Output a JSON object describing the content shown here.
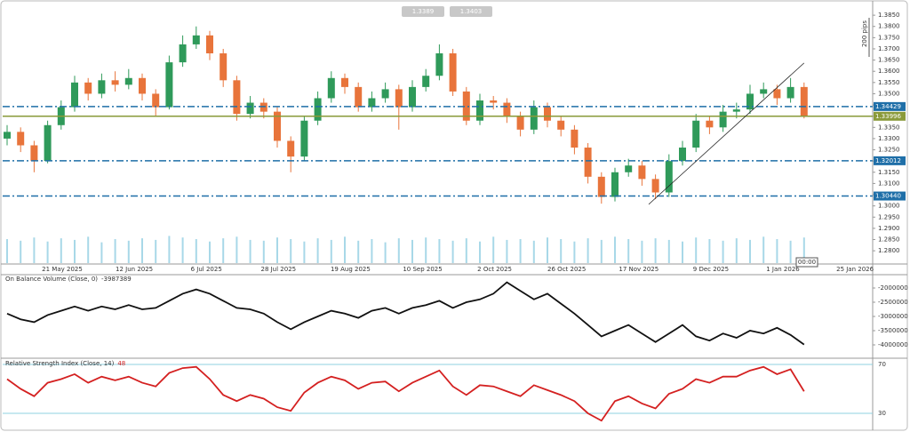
{
  "chart_data": [
    {
      "type": "candlestick",
      "toolbar": [
        "1.3389",
        "1.3403"
      ],
      "scale_label": "200 pips",
      "time_label": "00:00",
      "x_labels": [
        "21 May 2025",
        "12 Jun 2025",
        "6 Jul 2025",
        "28 Jul 2025",
        "19 Aug 2025",
        "10 Sep 2025",
        "2 Oct 2025",
        "26 Oct 2025",
        "17 Nov 2025",
        "9 Dec 2025",
        "1 Jan 2026",
        "25 Jan 2026"
      ],
      "open": [
        1.33,
        1.333,
        1.327,
        1.32,
        1.336,
        1.344,
        1.355,
        1.35,
        1.356,
        1.354,
        1.357,
        1.35,
        1.344,
        1.364,
        1.372,
        1.376,
        1.368,
        1.356,
        1.341,
        1.346,
        1.342,
        1.329,
        1.322,
        1.338,
        1.348,
        1.357,
        1.353,
        1.344,
        1.348,
        1.352,
        1.344,
        1.353,
        1.358,
        1.368,
        1.351,
        1.338,
        1.347,
        1.346,
        1.34,
        1.334,
        1.344,
        1.338,
        1.334,
        1.326,
        1.313,
        1.304,
        1.315,
        1.318,
        1.312,
        1.306,
        1.32,
        1.326,
        1.338,
        1.335,
        1.342,
        1.343,
        1.35,
        1.352,
        1.348,
        1.353
      ],
      "high": [
        1.336,
        1.335,
        1.329,
        1.338,
        1.347,
        1.358,
        1.357,
        1.359,
        1.36,
        1.361,
        1.359,
        1.352,
        1.367,
        1.376,
        1.38,
        1.378,
        1.37,
        1.358,
        1.349,
        1.348,
        1.344,
        1.331,
        1.34,
        1.351,
        1.36,
        1.359,
        1.355,
        1.351,
        1.355,
        1.354,
        1.356,
        1.361,
        1.372,
        1.37,
        1.353,
        1.35,
        1.349,
        1.348,
        1.342,
        1.347,
        1.346,
        1.34,
        1.336,
        1.328,
        1.315,
        1.317,
        1.321,
        1.32,
        1.314,
        1.323,
        1.329,
        1.341,
        1.34,
        1.345,
        1.346,
        1.354,
        1.355,
        1.354,
        1.357,
        1.355
      ],
      "low": [
        1.327,
        1.324,
        1.315,
        1.319,
        1.334,
        1.342,
        1.347,
        1.348,
        1.351,
        1.352,
        1.347,
        1.34,
        1.343,
        1.362,
        1.37,
        1.365,
        1.353,
        1.338,
        1.339,
        1.339,
        1.326,
        1.315,
        1.32,
        1.336,
        1.346,
        1.35,
        1.342,
        1.342,
        1.346,
        1.334,
        1.342,
        1.351,
        1.356,
        1.349,
        1.336,
        1.336,
        1.343,
        1.337,
        1.331,
        1.332,
        1.335,
        1.331,
        1.323,
        1.31,
        1.301,
        1.302,
        1.313,
        1.309,
        1.303,
        1.304,
        1.318,
        1.324,
        1.332,
        1.333,
        1.339,
        1.341,
        1.348,
        1.345,
        1.346,
        1.339
      ],
      "close": [
        1.333,
        1.327,
        1.32,
        1.336,
        1.344,
        1.355,
        1.35,
        1.356,
        1.354,
        1.357,
        1.35,
        1.344,
        1.364,
        1.372,
        1.376,
        1.368,
        1.356,
        1.341,
        1.346,
        1.342,
        1.329,
        1.322,
        1.338,
        1.348,
        1.357,
        1.353,
        1.344,
        1.348,
        1.352,
        1.344,
        1.353,
        1.358,
        1.368,
        1.351,
        1.338,
        1.347,
        1.346,
        1.34,
        1.334,
        1.344,
        1.338,
        1.334,
        1.326,
        1.313,
        1.304,
        1.315,
        1.318,
        1.312,
        1.306,
        1.32,
        1.326,
        1.338,
        1.335,
        1.342,
        1.343,
        1.35,
        1.352,
        1.348,
        1.353,
        1.34
      ],
      "volume": [
        30,
        28,
        32,
        27,
        31,
        29,
        33,
        26,
        30,
        28,
        31,
        29,
        34,
        32,
        30,
        27,
        31,
        33,
        29,
        28,
        32,
        30,
        27,
        31,
        29,
        33,
        28,
        30,
        26,
        31,
        29,
        32,
        30,
        28,
        31,
        27,
        33,
        29,
        30,
        28,
        32,
        30,
        27,
        31,
        29,
        33,
        30,
        28,
        31,
        29,
        27,
        32,
        30,
        28,
        31,
        29,
        33,
        30,
        28,
        32
      ],
      "up_color": "#2f9a5a",
      "down_color": "#e8743b",
      "volume_color": "#a8d8e8",
      "ylim": [
        1.2745,
        1.3898
      ],
      "yticks": [
        {
          "value": 1.28,
          "label": "1.2800"
        },
        {
          "value": 1.285,
          "label": "1.2850"
        },
        {
          "value": 1.29,
          "label": "1.2900"
        },
        {
          "value": 1.295,
          "label": "1.2950"
        },
        {
          "value": 1.3,
          "label": "1.3000"
        },
        {
          "value": 1.305,
          "label": "1.3050"
        },
        {
          "value": 1.31,
          "label": "1.3100"
        },
        {
          "value": 1.315,
          "label": "1.3150"
        },
        {
          "value": 1.32,
          "label": "1.3200"
        },
        {
          "value": 1.325,
          "label": "1.3250"
        },
        {
          "value": 1.33,
          "label": "1.3300"
        },
        {
          "value": 1.335,
          "label": "1.3350"
        },
        {
          "value": 1.34,
          "label": "1.3400"
        },
        {
          "value": 1.345,
          "label": "1.3450"
        },
        {
          "value": 1.35,
          "label": "1.3500"
        },
        {
          "value": 1.355,
          "label": "1.3550"
        },
        {
          "value": 1.36,
          "label": "1.3600"
        },
        {
          "value": 1.365,
          "label": "1.3650"
        },
        {
          "value": 1.37,
          "label": "1.3700"
        },
        {
          "value": 1.375,
          "label": "1.3750"
        },
        {
          "value": 1.38,
          "label": "1.3800"
        },
        {
          "value": 1.385,
          "label": "1.3850"
        }
      ],
      "levels": [
        {
          "value": 1.34429,
          "label": "1.34429",
          "color": "#1f6fa8",
          "style": "dashdot"
        },
        {
          "value": 1.33996,
          "label": "1.33996",
          "color": "#8a9a3a",
          "style": "solid"
        },
        {
          "value": 1.32012,
          "label": "1.32012",
          "color": "#1f6fa8",
          "style": "dashdot"
        },
        {
          "value": {
            "value": 1.3044,
            "label": "1.30440"
          },
          "label": "1.30440",
          "color": "#1f6fa8",
          "style": "dashdot"
        }
      ],
      "trendline": {
        "x": [
          47.5,
          59
        ],
        "y": [
          1.3007,
          1.3637
        ],
        "color": "#222"
      }
    },
    {
      "type": "line",
      "title": "On Balance Volume (Close, 0)",
      "current_value": -3987389,
      "color": "#111",
      "values": [
        -2900000,
        -3100000,
        -3200000,
        -2950000,
        -2800000,
        -2650000,
        -2800000,
        -2650000,
        -2750000,
        -2600000,
        -2750000,
        -2700000,
        -2450000,
        -2200000,
        -2050000,
        -2200000,
        -2450000,
        -2700000,
        -2750000,
        -2900000,
        -3200000,
        -3450000,
        -3200000,
        -3000000,
        -2800000,
        -2900000,
        -3050000,
        -2800000,
        -2700000,
        -2900000,
        -2700000,
        -2600000,
        -2450000,
        -2700000,
        -2500000,
        -2400000,
        -2200000,
        -1800000,
        -2100000,
        -2400000,
        -2200000,
        -2550000,
        -2900000,
        -3300000,
        -3700000,
        -3500000,
        -3300000,
        -3600000,
        -3900000,
        -3600000,
        -3300000,
        -3700000,
        -3850000,
        -3600000,
        -3750000,
        -3500000,
        -3600000,
        -3400000,
        -3650000,
        -3987389
      ],
      "ylim": [
        -4375000,
        -1562500
      ],
      "yticks": [
        -4000000,
        -3500000,
        -3000000,
        -2500000,
        -2000000
      ]
    },
    {
      "type": "line",
      "title": "Relative Strength Index (Close, 14)",
      "current_value": 48,
      "color": "#d42020",
      "level_color": "#8fd0e0",
      "values": [
        58,
        50,
        44,
        55,
        58,
        62,
        55,
        60,
        57,
        60,
        55,
        52,
        63,
        67,
        68,
        58,
        45,
        40,
        45,
        42,
        35,
        32,
        47,
        55,
        60,
        57,
        50,
        55,
        56,
        48,
        55,
        60,
        65,
        52,
        45,
        53,
        52,
        48,
        44,
        53,
        49,
        45,
        40,
        30,
        24,
        40,
        44,
        38,
        34,
        46,
        50,
        58,
        55,
        60,
        60,
        65,
        68,
        62,
        66,
        48
      ],
      "ylim": [
        16.9,
        73.6
      ],
      "yticks": [
        30,
        70
      ]
    }
  ]
}
